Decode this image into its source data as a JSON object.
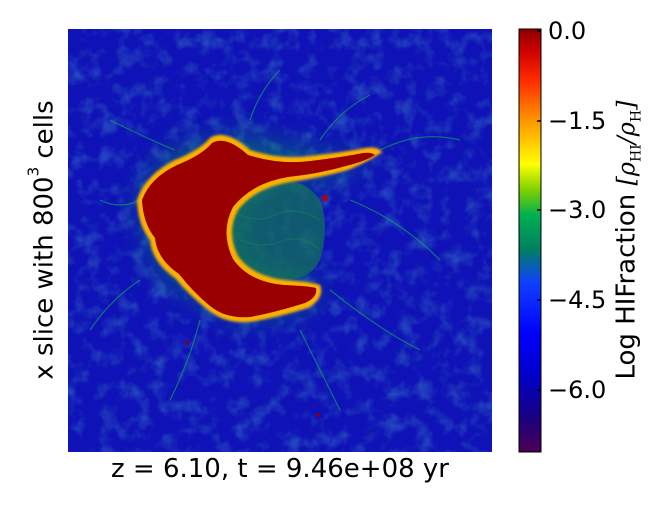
{
  "plot": {
    "ylabel_main": "x slice with 800",
    "ylabel_sup": "3",
    "ylabel_end": " cells",
    "xlabel": "z = 6.10, t = 9.46e+08 yr"
  },
  "colorbar": {
    "label_text": "Log HIFraction",
    "label_math": "[ρ",
    "label_sub1": "HI",
    "label_mid": "/ρ",
    "label_sub2": "H",
    "label_end": "]",
    "ticks": [
      "0.0",
      "−1.5",
      "−3.0",
      "−4.5",
      "−6.0"
    ],
    "range": [
      -7.0,
      0.0
    ],
    "colormap": [
      "#4b0055",
      "#1a0080",
      "#0000c8",
      "#0000ff",
      "#1040ff",
      "#008060",
      "#00b050",
      "#80d000",
      "#ffff00",
      "#ff9900",
      "#ff2a00",
      "#cc0000",
      "#8b0000"
    ]
  },
  "colors": {
    "background_field": "#0a10c0",
    "ionized_region": "#9a0000",
    "front_edge": "#ffb000",
    "filaments": "#00a040"
  }
}
